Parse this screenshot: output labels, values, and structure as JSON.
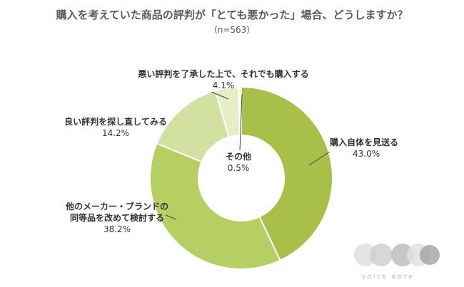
{
  "chart_data": {
    "type": "pie",
    "donut": true,
    "title": "購入を考えていた商品の評判が「とても悪かった」場合、どうしますか？",
    "subtitle": "（n=563）",
    "slices": [
      {
        "label": "購入自体を見送る",
        "value": 43.0,
        "value_label": "43.0%",
        "color": "#a8c04a"
      },
      {
        "label": "他のメーカー・ブランドの同等品を改めて検討する",
        "label_lines": [
          "他のメーカー・ブランドの",
          "同等品を改めて検討する"
        ],
        "value": 38.2,
        "value_label": "38.2%",
        "color": "#b7ce62"
      },
      {
        "label": "良い評判を探し直してみる",
        "value": 14.2,
        "value_label": "14.2%",
        "color": "#d2e0a0"
      },
      {
        "label": "悪い評判を了承した上で、それでも購入する",
        "value": 4.1,
        "value_label": "4.1%",
        "color": "#e6eec6"
      },
      {
        "label": "その他",
        "value": 0.5,
        "value_label": "0.5%",
        "color": "#f3f6e4"
      }
    ]
  },
  "logo": {
    "text": "VOICE NOTE"
  }
}
